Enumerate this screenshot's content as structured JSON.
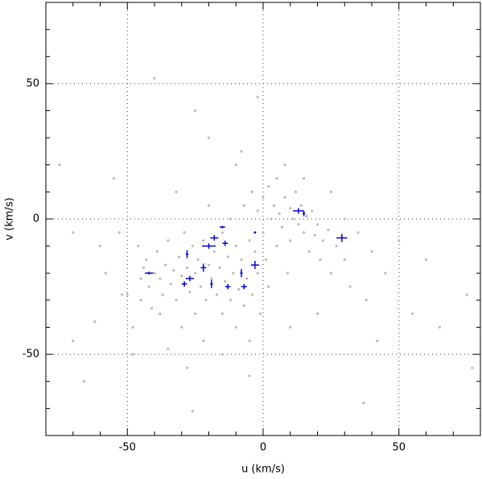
{
  "chart_data": {
    "type": "scatter",
    "xlabel": "u (km/s)",
    "ylabel": "v (km/s)",
    "xlim": [
      -80,
      80
    ],
    "ylim": [
      -80,
      80
    ],
    "xticks": [
      -50,
      0,
      50
    ],
    "yticks": [
      -50,
      0,
      50
    ],
    "xminorticks": [
      -70,
      -60,
      -40,
      -30,
      -20,
      -10,
      10,
      20,
      30,
      40,
      60,
      70
    ],
    "yminorticks": [
      -70,
      -60,
      -40,
      -30,
      -20,
      -10,
      10,
      20,
      30,
      40,
      60,
      70
    ],
    "grid": true,
    "series": [
      {
        "color": "#bbbbbb",
        "x": [
          -75,
          -70,
          -66,
          -62,
          -58,
          -55,
          -53,
          -50,
          -48,
          -46,
          -45,
          -44,
          -43,
          -42,
          -41,
          -40,
          -39,
          -38,
          -37,
          -36,
          -35,
          -34,
          -33,
          -32,
          -31,
          -30,
          -30,
          -29,
          -28,
          -27,
          -26,
          -25,
          -25,
          -24,
          -23,
          -22,
          -21,
          -20,
          -20,
          -19,
          -18,
          -17,
          -16,
          -15,
          -15,
          -14,
          -13,
          -12,
          -12,
          -11,
          -10,
          -10,
          -9,
          -8,
          -7,
          -7,
          -6,
          -5,
          -5,
          -4,
          -4,
          -3,
          -2,
          -2,
          -1,
          0,
          0,
          1,
          2,
          2,
          3,
          4,
          5,
          5,
          6,
          7,
          8,
          9,
          10,
          10,
          11,
          12,
          13,
          14,
          15,
          16,
          17,
          18,
          19,
          20,
          21,
          22,
          24,
          25,
          27,
          30,
          32,
          35,
          38,
          40,
          42,
          45,
          50,
          55,
          60,
          65,
          75,
          77,
          -20,
          -10,
          -2,
          -25,
          -40,
          -48,
          -35,
          -28,
          -22,
          -15,
          -5,
          10,
          20,
          -60,
          -70,
          -52,
          -45,
          -38,
          -32,
          -8,
          8,
          15,
          25,
          30,
          -26,
          37
        ],
        "y": [
          20,
          -45,
          -60,
          -38,
          -20,
          15,
          -5,
          -28,
          -50,
          -10,
          -22,
          -18,
          -15,
          -25,
          -33,
          -20,
          -12,
          -22,
          -28,
          -17,
          -8,
          -24,
          -19,
          -30,
          -14,
          -21,
          -40,
          -5,
          -18,
          -27,
          -10,
          -20,
          -35,
          -15,
          -25,
          -8,
          -30,
          -17,
          5,
          -22,
          -12,
          -28,
          -18,
          -5,
          -35,
          -23,
          -14,
          -30,
          0,
          -20,
          -10,
          -40,
          -26,
          -15,
          5,
          -32,
          -22,
          -8,
          -45,
          10,
          -28,
          -12,
          3,
          -20,
          -35,
          8,
          -5,
          -15,
          12,
          -25,
          0,
          5,
          -10,
          15,
          2,
          -3,
          8,
          -20,
          4,
          -8,
          0,
          10,
          -2,
          5,
          -5,
          1,
          -12,
          3,
          -6,
          -2,
          -15,
          -8,
          -4,
          -20,
          -10,
          -15,
          -25,
          -5,
          -30,
          -12,
          -45,
          -20,
          -8,
          -35,
          -15,
          -40,
          -28,
          -55,
          30,
          20,
          45,
          40,
          52,
          -40,
          -48,
          -55,
          -45,
          -50,
          -58,
          -40,
          -35,
          -10,
          -5,
          -28,
          -30,
          -35,
          10,
          25,
          20,
          15,
          10,
          0,
          -71,
          -68
        ]
      },
      {
        "color": "#0000dd",
        "x": [
          -42,
          -28,
          -27,
          -29,
          -22,
          -20,
          -18,
          -15,
          -14,
          -19,
          -13,
          -7,
          -8,
          -3,
          -3,
          13,
          15,
          29
        ],
        "y": [
          -20,
          -13,
          -22,
          -24,
          -18,
          -10,
          -7,
          -3,
          -9,
          -24,
          -25,
          -25,
          -20,
          -17,
          -5,
          3,
          2,
          -7
        ],
        "xerr": [
          1.5,
          0.5,
          1.5,
          1,
          1,
          2.5,
          1.5,
          1,
          1,
          0.5,
          1,
          1,
          0.3,
          1.5,
          0.3,
          2,
          0.5,
          2
        ],
        "yerr": [
          0.5,
          1.5,
          1,
          1,
          1.5,
          1,
          1,
          0.3,
          1,
          1.5,
          1,
          1,
          1.5,
          1.5,
          0.3,
          1,
          1,
          1.5
        ]
      }
    ]
  }
}
